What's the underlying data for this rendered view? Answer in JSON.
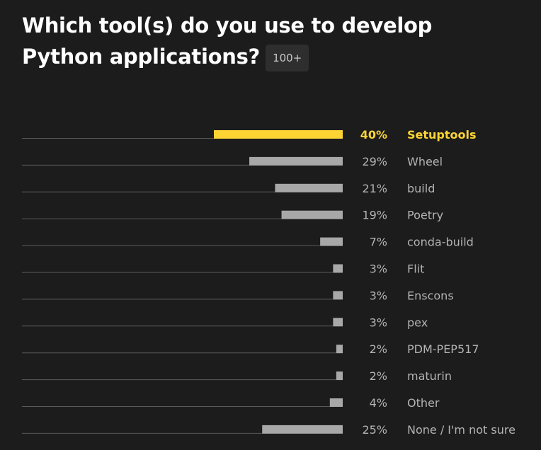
{
  "title": {
    "text": "Which tool(s) do you use to develop Python applications?",
    "badge": "100+"
  },
  "colors": {
    "background": "#1c1c1c",
    "highlight": "#fcd434",
    "bar": "#a8a8a8",
    "baseline": "#5a5a5a",
    "label": "#b4b4b4"
  },
  "chart_data": {
    "type": "bar",
    "orientation": "horizontal",
    "value_unit": "%",
    "xlim": [
      0,
      40
    ],
    "categories": [
      "Setuptools",
      "Wheel",
      "build",
      "Poetry",
      "conda-build",
      "Flit",
      "Enscons",
      "pex",
      "PDM-PEP517",
      "maturin",
      "Other",
      "None / I'm not sure"
    ],
    "values": [
      40,
      29,
      21,
      19,
      7,
      3,
      3,
      3,
      2,
      2,
      4,
      25
    ],
    "value_labels": [
      "40%",
      "29%",
      "21%",
      "19%",
      "7%",
      "3%",
      "3%",
      "3%",
      "2%",
      "2%",
      "4%",
      "25%"
    ],
    "highlighted": "Setuptools",
    "grid": false,
    "legend": "none"
  }
}
